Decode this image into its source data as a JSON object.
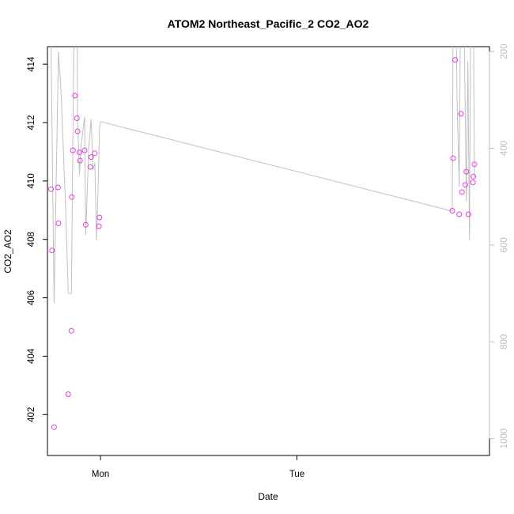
{
  "chart_data": {
    "type": "scatter",
    "title": "ATOM2 Northeast_Pacific_2 CO2_AO2",
    "xlabel": "Date",
    "ylabel": "CO2_AO2",
    "x_unit": "days from Monday 00:00",
    "xlim": [
      -0.27,
      1.98
    ],
    "ylim": [
      400.6,
      414.6
    ],
    "x_ticks": [
      {
        "value": 0,
        "label": "Mon"
      },
      {
        "value": 1,
        "label": "Tue"
      }
    ],
    "y_ticks": [
      402,
      404,
      406,
      408,
      410,
      412,
      414
    ],
    "right_axis": {
      "description": "secondary axis (pressure) drawn in light gray, inverted",
      "ticks": [
        200,
        400,
        600,
        800,
        1000
      ],
      "range_top": 190,
      "range_bottom": 1035,
      "color": "#bdbdbd"
    },
    "grid": false,
    "legend": "none",
    "series": [
      {
        "kind": "points",
        "color": "#e040e0",
        "marker": "open-circle",
        "points": [
          {
            "x": -0.252,
            "y": 409.72
          },
          {
            "x": -0.247,
            "y": 407.62
          },
          {
            "x": -0.236,
            "y": 401.57
          },
          {
            "x": -0.216,
            "y": 409.78
          },
          {
            "x": -0.214,
            "y": 408.55
          },
          {
            "x": -0.164,
            "y": 402.7
          },
          {
            "x": -0.148,
            "y": 404.87
          },
          {
            "x": -0.146,
            "y": 409.45
          },
          {
            "x": -0.14,
            "y": 411.05
          },
          {
            "x": -0.13,
            "y": 412.92
          },
          {
            "x": -0.12,
            "y": 412.15
          },
          {
            "x": -0.117,
            "y": 411.7
          },
          {
            "x": -0.107,
            "y": 410.98
          },
          {
            "x": -0.104,
            "y": 410.7
          },
          {
            "x": -0.081,
            "y": 411.05
          },
          {
            "x": -0.075,
            "y": 408.5
          },
          {
            "x": -0.052,
            "y": 410.48
          },
          {
            "x": -0.048,
            "y": 410.82
          },
          {
            "x": -0.029,
            "y": 410.95
          },
          {
            "x": -0.008,
            "y": 408.45
          },
          {
            "x": -0.005,
            "y": 408.75
          },
          {
            "x": 1.791,
            "y": 408.98
          },
          {
            "x": 1.795,
            "y": 410.78
          },
          {
            "x": 1.805,
            "y": 414.15
          },
          {
            "x": 1.826,
            "y": 408.86
          },
          {
            "x": 1.835,
            "y": 412.3
          },
          {
            "x": 1.84,
            "y": 409.62
          },
          {
            "x": 1.857,
            "y": 409.87
          },
          {
            "x": 1.862,
            "y": 410.32
          },
          {
            "x": 1.873,
            "y": 408.86
          },
          {
            "x": 1.896,
            "y": 409.95
          },
          {
            "x": 1.898,
            "y": 410.15
          },
          {
            "x": 1.903,
            "y": 410.57
          }
        ]
      },
      {
        "kind": "line",
        "color": "#c0c0c0",
        "axis": "right",
        "points": [
          {
            "x": -0.252,
            "y": 180
          },
          {
            "x": -0.236,
            "y": 720
          },
          {
            "x": -0.214,
            "y": 200
          },
          {
            "x": -0.2,
            "y": 290
          },
          {
            "x": -0.178,
            "y": 520
          },
          {
            "x": -0.164,
            "y": 700
          },
          {
            "x": -0.148,
            "y": 700
          },
          {
            "x": -0.14,
            "y": 360
          },
          {
            "x": -0.13,
            "y": -50
          },
          {
            "x": -0.12,
            "y": -50
          },
          {
            "x": -0.117,
            "y": 330
          },
          {
            "x": -0.107,
            "y": 455
          },
          {
            "x": -0.1,
            "y": 400
          },
          {
            "x": -0.081,
            "y": 335
          },
          {
            "x": -0.075,
            "y": 580
          },
          {
            "x": -0.06,
            "y": 400
          },
          {
            "x": -0.048,
            "y": 340
          },
          {
            "x": -0.038,
            "y": 445
          },
          {
            "x": -0.029,
            "y": 430
          },
          {
            "x": -0.02,
            "y": 590
          },
          {
            "x": -0.012,
            "y": 480
          },
          {
            "x": -0.005,
            "y": 360
          },
          {
            "x": 0.0,
            "y": 345
          },
          {
            "x": 1.791,
            "y": 530
          },
          {
            "x": 1.795,
            "y": 80
          },
          {
            "x": 1.805,
            "y": -50
          },
          {
            "x": 1.815,
            "y": 300
          },
          {
            "x": 1.826,
            "y": 480
          },
          {
            "x": 1.835,
            "y": -50
          },
          {
            "x": 1.85,
            "y": 100
          },
          {
            "x": 1.862,
            "y": 510
          },
          {
            "x": 1.87,
            "y": 220
          },
          {
            "x": 1.878,
            "y": 590
          },
          {
            "x": 1.885,
            "y": 50
          },
          {
            "x": 1.896,
            "y": -50
          },
          {
            "x": 1.903,
            "y": 460
          }
        ]
      }
    ]
  }
}
